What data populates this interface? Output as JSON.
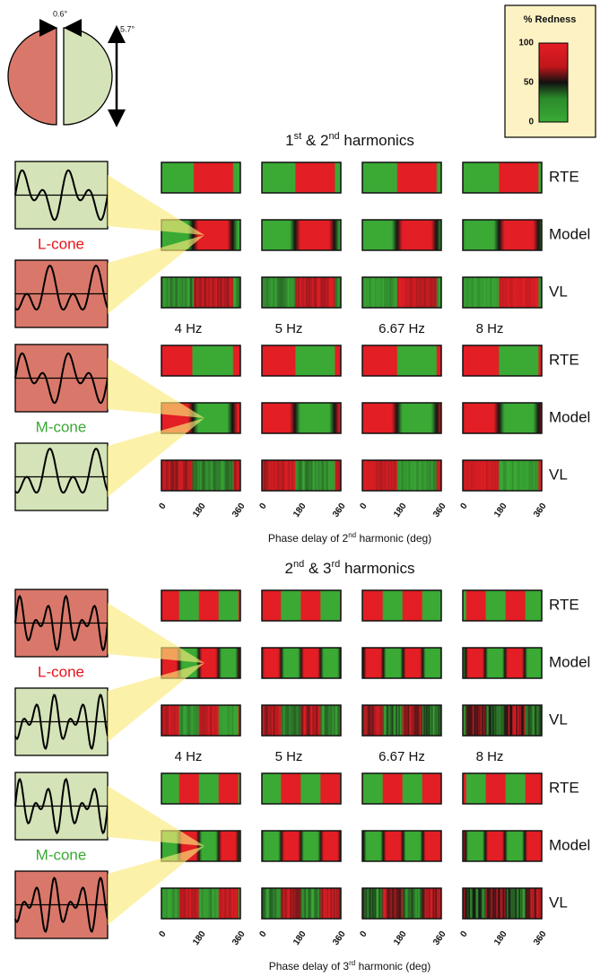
{
  "stimulus": {
    "gap_label": "0.6°",
    "height_label": "5.7°"
  },
  "legend": {
    "title": "% Redness",
    "ticks": [
      100,
      50,
      0
    ]
  },
  "sections": [
    {
      "title": [
        {
          "text": "1"
        },
        {
          "text": "st",
          "sup": true
        },
        {
          "text": " & 2"
        },
        {
          "text": "nd",
          "sup": true
        },
        {
          "text": " harmonics"
        }
      ],
      "frequencies": [
        "4 Hz",
        "5 Hz",
        "6.67 Hz",
        "8 Hz"
      ],
      "groups": [
        {
          "cone": "L-cone",
          "color": "#e8141b",
          "rows": [
            "RTE",
            "Model",
            "VL"
          ]
        },
        {
          "cone": "M-cone",
          "color": "#3aa935",
          "rows": [
            "RTE",
            "Model",
            "VL"
          ]
        }
      ],
      "xticks": [
        0,
        180,
        360
      ],
      "xlabel": [
        {
          "text": "Phase delay of 2"
        },
        {
          "text": "nd",
          "sup": true
        },
        {
          "text": " harmonic (deg)"
        }
      ]
    },
    {
      "title": [
        {
          "text": "2"
        },
        {
          "text": "nd",
          "sup": true
        },
        {
          "text": " & 3"
        },
        {
          "text": "rd",
          "sup": true
        },
        {
          "text": " harmonics"
        }
      ],
      "frequencies": [
        "4 Hz",
        "5 Hz",
        "6.67 Hz",
        "8 Hz"
      ],
      "groups": [
        {
          "cone": "L-cone",
          "color": "#e8141b",
          "rows": [
            "RTE",
            "Model",
            "VL"
          ]
        },
        {
          "cone": "M-cone",
          "color": "#3aa935",
          "rows": [
            "RTE",
            "Model",
            "VL"
          ]
        }
      ],
      "xticks": [
        0,
        180,
        360
      ],
      "xlabel": [
        {
          "text": "Phase delay of 3"
        },
        {
          "text": "rd",
          "sup": true
        },
        {
          "text": " harmonic (deg)"
        }
      ]
    }
  ]
}
